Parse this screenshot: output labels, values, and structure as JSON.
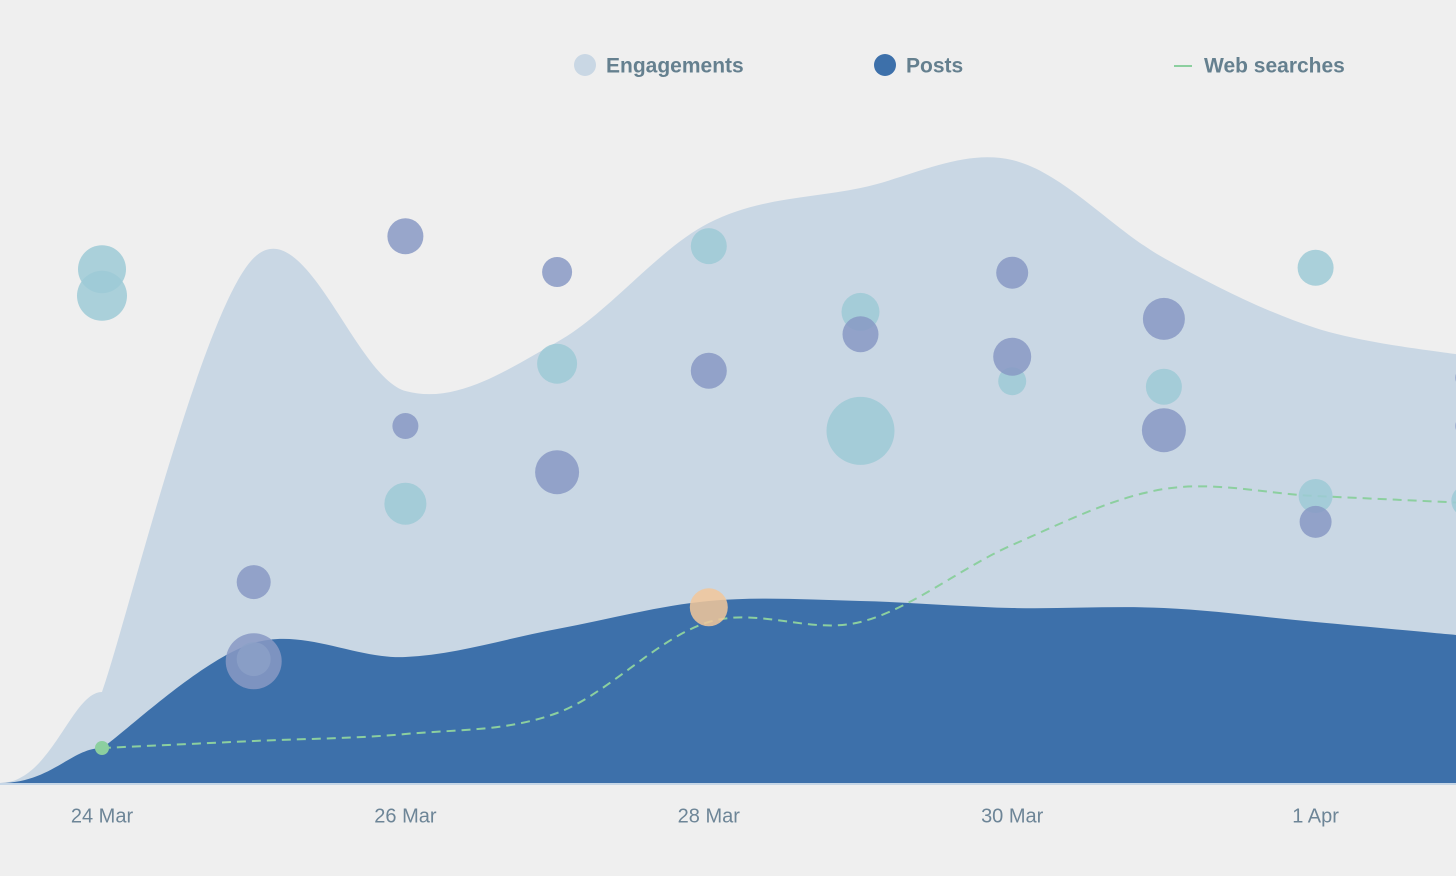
{
  "chart_data": {
    "type": "area",
    "categories": [
      "24 Mar",
      null,
      "26 Mar",
      null,
      "28 Mar",
      null,
      "30 Mar",
      null,
      "1 Apr",
      null
    ],
    "ylim": [
      0,
      100
    ],
    "series": [
      {
        "name": "Engagements",
        "color": "#c9d7e4",
        "type": "area",
        "values": [
          13,
          75,
          56,
          63,
          80,
          85,
          89,
          75,
          65,
          61
        ]
      },
      {
        "name": "Posts",
        "color": "#3d70aa",
        "type": "area",
        "values": [
          5,
          20,
          18,
          22,
          26,
          26,
          25,
          25,
          23,
          21
        ]
      },
      {
        "name": "Web searches",
        "color": "#8ccf9f",
        "type": "line",
        "values": [
          5,
          6,
          7,
          10,
          23,
          23,
          34,
          42,
          41,
          40
        ]
      }
    ],
    "bubbles": [
      {
        "color": "#9ecad6",
        "x": [
          0,
          0,
          1,
          2,
          3,
          4,
          5,
          5,
          6,
          7,
          8,
          8,
          9
        ],
        "y": [
          73.4,
          69.6,
          17.7,
          39.9,
          59.9,
          76.7,
          67.3,
          50.3,
          57.4,
          56.6,
          73.6,
          41,
          40.3
        ],
        "size": [
          24,
          25,
          17,
          21,
          20,
          18,
          19,
          34,
          14,
          18,
          18,
          17,
          16
        ]
      },
      {
        "color": "#8899c4",
        "x": [
          1,
          1,
          2,
          2,
          3,
          3,
          4,
          5,
          6,
          6,
          7,
          7,
          8,
          9,
          9
        ],
        "y": [
          28.7,
          17.4,
          78.1,
          51,
          73,
          44.4,
          58.9,
          64.1,
          72.9,
          60.9,
          66.3,
          50.4,
          37.3,
          57.9,
          51
        ],
        "size": [
          17,
          28,
          18,
          13,
          15,
          22,
          18,
          18,
          16,
          19,
          21,
          22,
          16,
          12,
          12
        ]
      },
      {
        "color": "#f2c79a",
        "x": [
          4
        ],
        "y": [
          25.1
        ],
        "size": [
          19
        ]
      }
    ]
  }
}
